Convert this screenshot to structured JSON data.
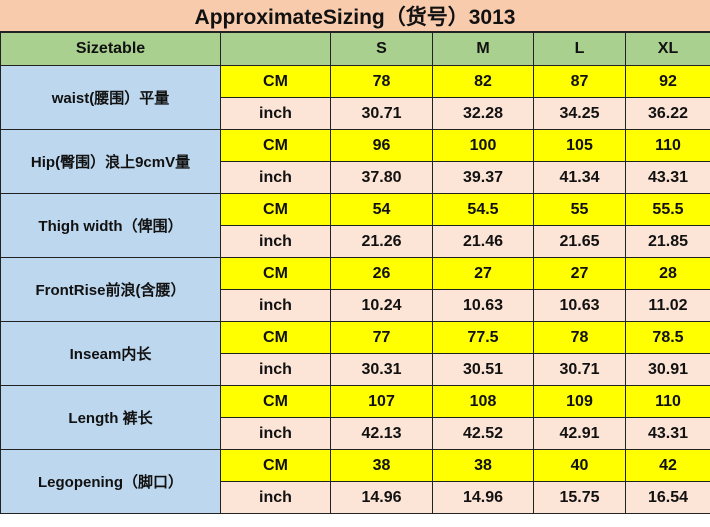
{
  "title": "ApproximateSizing（货号）3013",
  "header": {
    "label": "Sizetable",
    "unit": "",
    "sizes": [
      "S",
      "M",
      "L",
      "XL"
    ]
  },
  "colors": {
    "title_bg": "#f8cbad",
    "header_bg": "#a9d08e",
    "label_bg": "#bdd7ee",
    "cm_bg": "#ffff00",
    "inch_bg": "#fce4d6"
  },
  "rows": [
    {
      "label": "waist(腰围）平量",
      "cm_label": "CM",
      "inch_label": "inch",
      "cm": [
        "78",
        "82",
        "87",
        "92"
      ],
      "inch": [
        "30.71",
        "32.28",
        "34.25",
        "36.22"
      ]
    },
    {
      "label": "Hip(臀围）浪上9cmV量",
      "cm_label": "CM",
      "inch_label": "inch",
      "cm": [
        "96",
        "100",
        "105",
        "110"
      ],
      "inch": [
        "37.80",
        "39.37",
        "41.34",
        "43.31"
      ]
    },
    {
      "label": "Thigh width（俾围）",
      "cm_label": "CM",
      "inch_label": "inch",
      "cm": [
        "54",
        "54.5",
        "55",
        "55.5"
      ],
      "inch": [
        "21.26",
        "21.46",
        "21.65",
        "21.85"
      ]
    },
    {
      "label": "FrontRise前浪(含腰）",
      "cm_label": "CM",
      "inch_label": "inch",
      "cm": [
        "26",
        "27",
        "27",
        "28"
      ],
      "inch": [
        "10.24",
        "10.63",
        "10.63",
        "11.02"
      ]
    },
    {
      "label": "Inseam内长",
      "cm_label": "CM",
      "inch_label": "inch",
      "cm": [
        "77",
        "77.5",
        "78",
        "78.5"
      ],
      "inch": [
        "30.31",
        "30.51",
        "30.71",
        "30.91"
      ]
    },
    {
      "label": "Length 裤长",
      "cm_label": "CM",
      "inch_label": "inch",
      "cm": [
        "107",
        "108",
        "109",
        "110"
      ],
      "inch": [
        "42.13",
        "42.52",
        "42.91",
        "43.31"
      ]
    },
    {
      "label": "Legopening（脚口）",
      "cm_label": "CM",
      "inch_label": "inch",
      "cm": [
        "38",
        "38",
        "40",
        "42"
      ],
      "inch": [
        "14.96",
        "14.96",
        "15.75",
        "16.54"
      ]
    }
  ]
}
